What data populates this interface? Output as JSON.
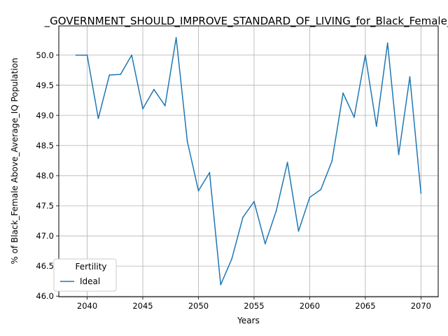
{
  "chart_data": {
    "type": "line",
    "title": "_GOVERNMENT_SHOULD_IMPROVE_STANDARD_OF_LIVING_for_Black_Female_",
    "xlabel": "Years",
    "ylabel": "% of Black_Female Above_Average_IQ Population",
    "xlim": [
      2037.45,
      2071.55
    ],
    "ylim": [
      45.99,
      50.485
    ],
    "x_ticks": [
      2040,
      2045,
      2050,
      2055,
      2060,
      2065,
      2070
    ],
    "y_ticks": [
      46.0,
      46.5,
      47.0,
      47.5,
      48.0,
      48.5,
      49.0,
      49.5,
      50.0
    ],
    "x_tick_labels": [
      "2040",
      "2045",
      "2050",
      "2055",
      "2060",
      "2065",
      "2070"
    ],
    "y_tick_labels": [
      "46.0",
      "46.5",
      "47.0",
      "47.5",
      "48.0",
      "48.5",
      "49.0",
      "49.5",
      "50.0"
    ],
    "grid": true,
    "legend": {
      "title": "Fertility",
      "position": "lower-left"
    },
    "series": [
      {
        "name": "Ideal",
        "color": "#1f77b4",
        "x": [
          2039,
          2040,
          2041,
          2042,
          2043,
          2044,
          2045,
          2046,
          2047,
          2048,
          2049,
          2050,
          2051,
          2052,
          2053,
          2054,
          2055,
          2056,
          2057,
          2058,
          2059,
          2060,
          2061,
          2062,
          2063,
          2064,
          2065,
          2066,
          2067,
          2068,
          2069,
          2070
        ],
        "y": [
          50.0,
          50.0,
          48.95,
          49.67,
          49.68,
          50.0,
          49.11,
          49.43,
          49.16,
          50.29,
          48.57,
          47.75,
          48.05,
          46.19,
          46.62,
          47.31,
          47.57,
          46.87,
          47.42,
          48.22,
          47.08,
          47.64,
          47.77,
          48.24,
          49.37,
          48.97,
          50.0,
          48.82,
          50.2,
          48.35,
          49.64,
          47.71
        ]
      }
    ]
  }
}
